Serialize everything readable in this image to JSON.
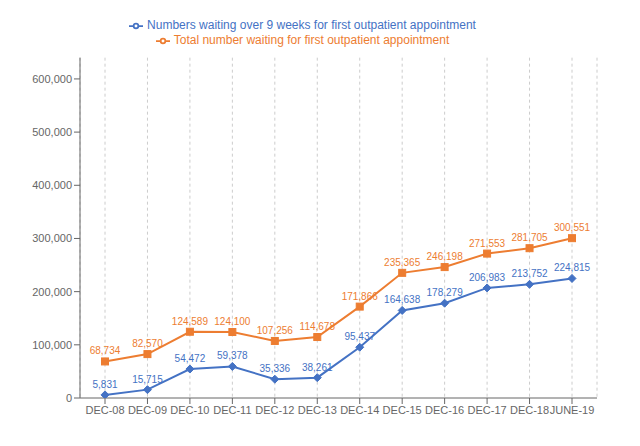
{
  "chart_data": {
    "type": "line",
    "categories": [
      "DEC-08",
      "DEC-09",
      "DEC-10",
      "DEC-11",
      "DEC-12",
      "DEC-13",
      "DEC-14",
      "DEC-15",
      "DEC-16",
      "DEC-17",
      "DEC-18",
      "JUNE-19"
    ],
    "series": [
      {
        "name": "Numbers waiting over 9 weeks for first outpatient appointment",
        "color": "#4472C4",
        "marker": "diamond",
        "values": [
          5831,
          15715,
          54472,
          59378,
          35336,
          38261,
          95437,
          164638,
          178279,
          206983,
          213752,
          224815
        ],
        "value_labels": [
          "5,831",
          "15,715",
          "54,472",
          "59,378",
          "35,336",
          "38,261",
          "95,437",
          "164,638",
          "178,279",
          "206,983",
          "213,752",
          "224,815"
        ]
      },
      {
        "name": "Total number waiting for first outpatient appointment",
        "color": "#ED7D31",
        "marker": "square",
        "values": [
          68734,
          82570,
          124589,
          124100,
          107256,
          114678,
          171866,
          235365,
          246198,
          271553,
          281705,
          300551
        ],
        "value_labels": [
          "68,734",
          "82,570",
          "124,589",
          "124,100",
          "107,256",
          "114,678",
          "171,866",
          "235,365",
          "246,198",
          "271,553",
          "281,705",
          "300,551"
        ]
      }
    ],
    "ylim": [
      0,
      640000
    ],
    "yticks": [
      0,
      {
        "value": 100000,
        "label": "100,000"
      },
      {
        "value": 200000,
        "label": "200,000"
      },
      {
        "value": 300000,
        "label": "300,000"
      },
      {
        "value": 400000,
        "label": "400,000"
      },
      {
        "value": 500000,
        "label": "500,000"
      },
      {
        "value": 600000,
        "label": "600,000"
      }
    ],
    "grid": "x",
    "legend": "top",
    "data_labels": true
  }
}
